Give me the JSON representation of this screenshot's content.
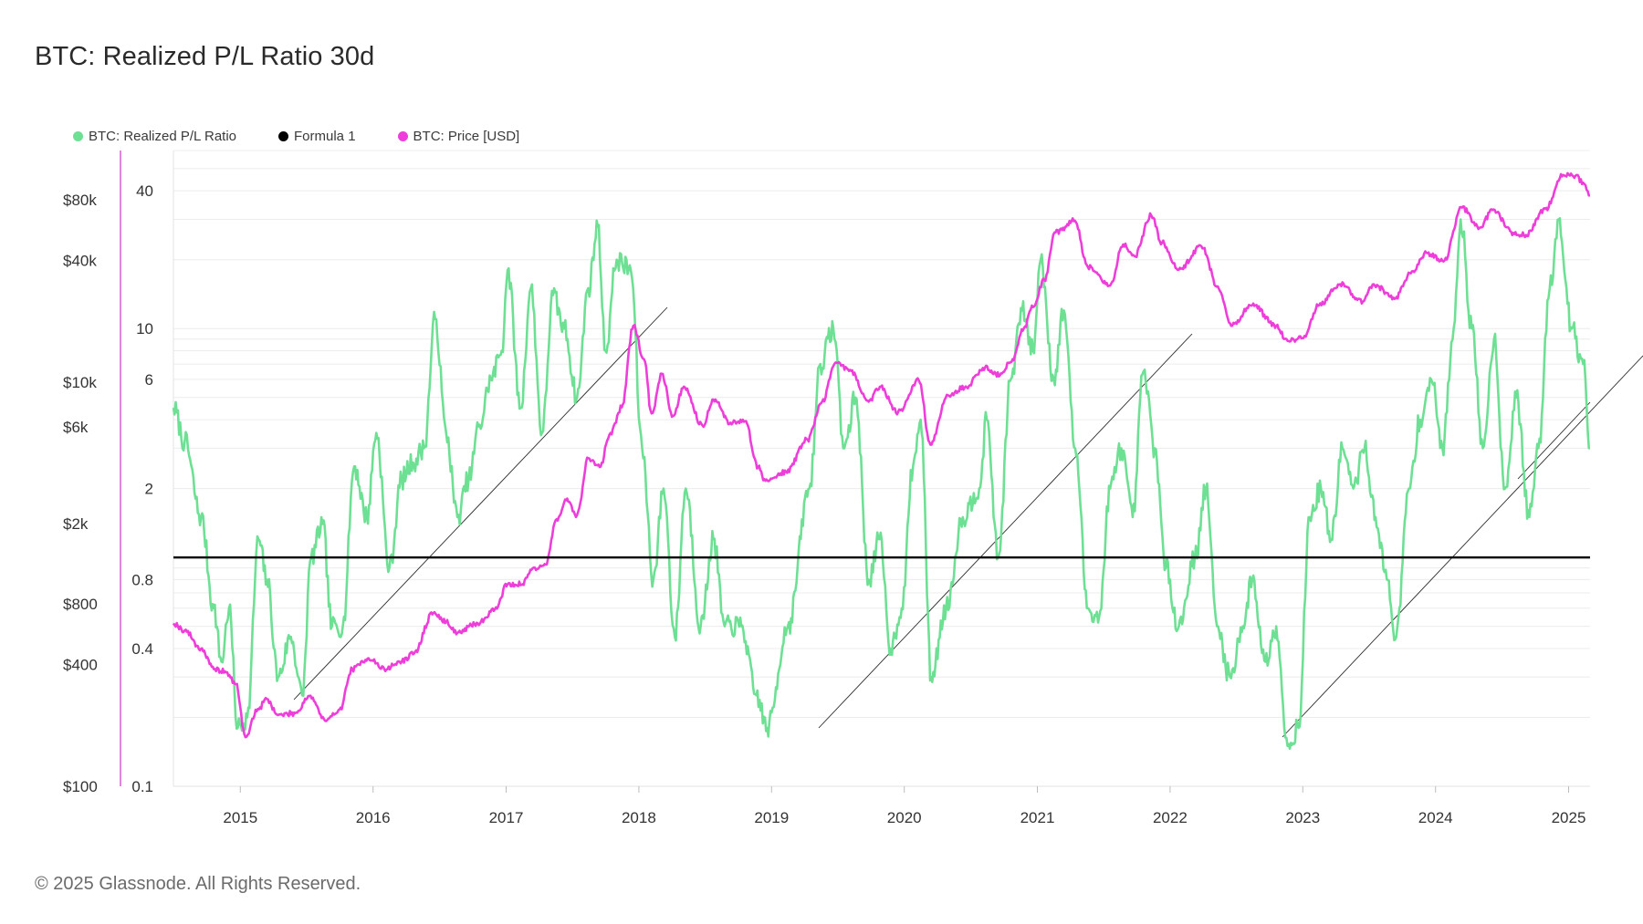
{
  "header": {
    "title": "BTC: Realized P/L Ratio 30d"
  },
  "footer": {
    "copyright": "© 2025 Glassnode. All Rights Reserved."
  },
  "colors": {
    "ratio": "#6ee094",
    "price": "#ee3ed9",
    "formula": "#111111",
    "grid": "#ececec",
    "left_axis": "#d95fd0"
  },
  "chart_data": {
    "type": "line",
    "title": "BTC: Realized P/L Ratio 30d",
    "legend_position": "top-left",
    "grid": true,
    "x_range": [
      "2014-07-01",
      "2025-03-01"
    ],
    "x_ticks": [
      "2015",
      "2016",
      "2017",
      "2018",
      "2019",
      "2020",
      "2021",
      "2022",
      "2023",
      "2024",
      "2025"
    ],
    "y_left": {
      "scale": "log",
      "range": [
        100,
        140000
      ],
      "ticks": [
        "$100",
        "$400",
        "$800",
        "$2k",
        "$6k",
        "$10k",
        "$40k",
        "$80k"
      ],
      "tick_values": [
        100,
        400,
        800,
        2000,
        6000,
        10000,
        40000,
        80000
      ]
    },
    "y_right": {
      "scale": "log",
      "range": [
        0.1,
        60
      ],
      "ticks": [
        "0.1",
        "0.4",
        "0.8",
        "2",
        "6",
        "10",
        "40"
      ],
      "tick_values": [
        0.1,
        0.4,
        0.8,
        2,
        6,
        10,
        40
      ]
    },
    "series": [
      {
        "name": "BTC: Realized P/L Ratio",
        "axis": "right",
        "points": [
          [
            "2014-07-01",
            4.5
          ],
          [
            "2014-08-01",
            3.2
          ],
          [
            "2014-09-15",
            1.5
          ],
          [
            "2014-10-20",
            0.6
          ],
          [
            "2014-11-10",
            0.35
          ],
          [
            "2014-12-01",
            0.6
          ],
          [
            "2014-12-25",
            0.18
          ],
          [
            "2015-01-20",
            0.2
          ],
          [
            "2015-02-20",
            1.2
          ],
          [
            "2015-03-15",
            0.8
          ],
          [
            "2015-04-15",
            0.3
          ],
          [
            "2015-05-20",
            0.45
          ],
          [
            "2015-06-20",
            0.25
          ],
          [
            "2015-07-15",
            1.0
          ],
          [
            "2015-08-15",
            1.4
          ],
          [
            "2015-09-10",
            0.5
          ],
          [
            "2015-10-10",
            0.5
          ],
          [
            "2015-11-10",
            2.5
          ],
          [
            "2015-12-15",
            1.5
          ],
          [
            "2016-01-10",
            3.5
          ],
          [
            "2016-02-15",
            0.9
          ],
          [
            "2016-03-20",
            2.2
          ],
          [
            "2016-04-20",
            2.6
          ],
          [
            "2016-05-20",
            3.0
          ],
          [
            "2016-06-20",
            11.0
          ],
          [
            "2016-07-20",
            3.5
          ],
          [
            "2016-08-20",
            1.5
          ],
          [
            "2016-09-20",
            2.2
          ],
          [
            "2016-10-20",
            3.8
          ],
          [
            "2016-11-20",
            6.0
          ],
          [
            "2016-12-20",
            8.0
          ],
          [
            "2017-01-05",
            18.0
          ],
          [
            "2017-02-10",
            4.5
          ],
          [
            "2017-03-10",
            15.0
          ],
          [
            "2017-04-10",
            3.5
          ],
          [
            "2017-05-10",
            14.0
          ],
          [
            "2017-06-10",
            10.0
          ],
          [
            "2017-07-15",
            5.0
          ],
          [
            "2017-08-15",
            15.0
          ],
          [
            "2017-09-10",
            28.0
          ],
          [
            "2017-10-01",
            8.0
          ],
          [
            "2017-11-01",
            20.0
          ],
          [
            "2017-12-10",
            18.0
          ],
          [
            "2018-01-10",
            3.0
          ],
          [
            "2018-02-10",
            0.8
          ],
          [
            "2018-03-10",
            2.0
          ],
          [
            "2018-04-10",
            0.45
          ],
          [
            "2018-05-10",
            2.0
          ],
          [
            "2018-06-20",
            0.5
          ],
          [
            "2018-07-25",
            1.2
          ],
          [
            "2018-08-25",
            0.5
          ],
          [
            "2018-10-10",
            0.5
          ],
          [
            "2018-11-20",
            0.25
          ],
          [
            "2018-12-20",
            0.18
          ],
          [
            "2019-02-15",
            0.5
          ],
          [
            "2019-04-15",
            2.0
          ],
          [
            "2019-05-15",
            7.0
          ],
          [
            "2019-06-20",
            10.0
          ],
          [
            "2019-07-20",
            3.0
          ],
          [
            "2019-08-20",
            5.0
          ],
          [
            "2019-09-25",
            0.8
          ],
          [
            "2019-10-25",
            1.2
          ],
          [
            "2019-11-25",
            0.4
          ],
          [
            "2019-12-25",
            0.6
          ],
          [
            "2020-01-25",
            2.5
          ],
          [
            "2020-02-15",
            4.0
          ],
          [
            "2020-03-15",
            0.3
          ],
          [
            "2020-04-25",
            0.6
          ],
          [
            "2020-06-10",
            1.5
          ],
          [
            "2020-07-25",
            2.0
          ],
          [
            "2020-08-15",
            4.0
          ],
          [
            "2020-09-15",
            1.0
          ],
          [
            "2020-10-20",
            6.0
          ],
          [
            "2020-11-20",
            12.0
          ],
          [
            "2020-12-20",
            8.0
          ],
          [
            "2021-01-10",
            20.0
          ],
          [
            "2021-02-15",
            6.0
          ],
          [
            "2021-03-15",
            12.0
          ],
          [
            "2021-04-15",
            3.0
          ],
          [
            "2021-05-20",
            0.6
          ],
          [
            "2021-06-20",
            0.55
          ],
          [
            "2021-07-20",
            2.0
          ],
          [
            "2021-08-20",
            3.0
          ],
          [
            "2021-09-20",
            1.5
          ],
          [
            "2021-10-20",
            6.5
          ],
          [
            "2021-11-20",
            3.0
          ],
          [
            "2021-12-20",
            0.9
          ],
          [
            "2022-01-25",
            0.5
          ],
          [
            "2022-03-10",
            1.0
          ],
          [
            "2022-04-10",
            2.0
          ],
          [
            "2022-05-10",
            0.5
          ],
          [
            "2022-06-15",
            0.3
          ],
          [
            "2022-07-20",
            0.5
          ],
          [
            "2022-08-15",
            0.8
          ],
          [
            "2022-09-20",
            0.35
          ],
          [
            "2022-10-20",
            0.5
          ],
          [
            "2022-11-20",
            0.15
          ],
          [
            "2022-12-20",
            0.18
          ],
          [
            "2023-01-20",
            1.5
          ],
          [
            "2023-02-20",
            2.0
          ],
          [
            "2023-03-20",
            1.2
          ],
          [
            "2023-04-20",
            3.0
          ],
          [
            "2023-05-20",
            2.0
          ],
          [
            "2023-06-20",
            3.0
          ],
          [
            "2023-07-20",
            1.5
          ],
          [
            "2023-08-20",
            0.8
          ],
          [
            "2023-09-15",
            0.45
          ],
          [
            "2023-10-20",
            2.0
          ],
          [
            "2023-11-20",
            4.0
          ],
          [
            "2023-12-20",
            6.0
          ],
          [
            "2024-01-20",
            3.0
          ],
          [
            "2024-02-20",
            10.0
          ],
          [
            "2024-03-10",
            30.0
          ],
          [
            "2024-04-10",
            10.0
          ],
          [
            "2024-05-10",
            3.0
          ],
          [
            "2024-06-10",
            9.0
          ],
          [
            "2024-07-10",
            2.0
          ],
          [
            "2024-08-10",
            5.0
          ],
          [
            "2024-09-15",
            1.5
          ],
          [
            "2024-10-10",
            3.0
          ],
          [
            "2024-11-10",
            15.0
          ],
          [
            "2024-12-05",
            30.0
          ],
          [
            "2025-01-10",
            10.0
          ],
          [
            "2025-02-10",
            7.0
          ],
          [
            "2025-03-01",
            3.0
          ]
        ]
      },
      {
        "name": "Formula 1",
        "axis": "right",
        "points": [
          [
            "2014-07-01",
            1.0
          ],
          [
            "2025-03-01",
            1.0
          ]
        ]
      },
      {
        "name": "BTC: Price [USD]",
        "axis": "left",
        "points": [
          [
            "2014-07-01",
            640
          ],
          [
            "2014-08-01",
            590
          ],
          [
            "2014-09-15",
            480
          ],
          [
            "2014-10-20",
            380
          ],
          [
            "2014-11-20",
            370
          ],
          [
            "2014-12-20",
            320
          ],
          [
            "2015-01-15",
            175
          ],
          [
            "2015-02-15",
            235
          ],
          [
            "2015-03-15",
            270
          ],
          [
            "2015-04-15",
            225
          ],
          [
            "2015-06-01",
            230
          ],
          [
            "2015-07-10",
            280
          ],
          [
            "2015-08-25",
            210
          ],
          [
            "2015-10-01",
            240
          ],
          [
            "2015-11-05",
            380
          ],
          [
            "2015-12-20",
            430
          ],
          [
            "2016-02-01",
            380
          ],
          [
            "2016-03-20",
            415
          ],
          [
            "2016-04-20",
            450
          ],
          [
            "2016-06-15",
            720
          ],
          [
            "2016-07-20",
            650
          ],
          [
            "2016-08-20",
            575
          ],
          [
            "2016-10-15",
            640
          ],
          [
            "2016-12-01",
            750
          ],
          [
            "2017-01-05",
            1000
          ],
          [
            "2017-02-15",
            1000
          ],
          [
            "2017-03-15",
            1200
          ],
          [
            "2017-04-20",
            1250
          ],
          [
            "2017-05-20",
            2100
          ],
          [
            "2017-06-15",
            2600
          ],
          [
            "2017-07-15",
            2200
          ],
          [
            "2017-08-15",
            4200
          ],
          [
            "2017-09-15",
            3800
          ],
          [
            "2017-10-15",
            5600
          ],
          [
            "2017-11-15",
            7500
          ],
          [
            "2017-12-17",
            19000
          ],
          [
            "2018-01-15",
            13000
          ],
          [
            "2018-02-05",
            7000
          ],
          [
            "2018-03-05",
            11000
          ],
          [
            "2018-04-05",
            6800
          ],
          [
            "2018-05-05",
            9500
          ],
          [
            "2018-06-25",
            6100
          ],
          [
            "2018-07-25",
            8200
          ],
          [
            "2018-09-10",
            6300
          ],
          [
            "2018-10-20",
            6400
          ],
          [
            "2018-11-25",
            3800
          ],
          [
            "2018-12-15",
            3250
          ],
          [
            "2019-02-10",
            3600
          ],
          [
            "2019-04-10",
            5200
          ],
          [
            "2019-05-20",
            8000
          ],
          [
            "2019-06-26",
            12500
          ],
          [
            "2019-08-05",
            11500
          ],
          [
            "2019-09-25",
            8000
          ],
          [
            "2019-10-26",
            9500
          ],
          [
            "2019-12-15",
            7100
          ],
          [
            "2020-02-10",
            10200
          ],
          [
            "2020-03-13",
            4900
          ],
          [
            "2020-04-30",
            8600
          ],
          [
            "2020-06-15",
            9400
          ],
          [
            "2020-08-10",
            11800
          ],
          [
            "2020-09-20",
            10800
          ],
          [
            "2020-10-25",
            13000
          ],
          [
            "2020-11-25",
            18500
          ],
          [
            "2020-12-20",
            23500
          ],
          [
            "2021-01-20",
            32000
          ],
          [
            "2021-02-20",
            55000
          ],
          [
            "2021-04-14",
            63000
          ],
          [
            "2021-05-20",
            37000
          ],
          [
            "2021-07-20",
            30000
          ],
          [
            "2021-08-25",
            48000
          ],
          [
            "2021-09-25",
            42000
          ],
          [
            "2021-11-10",
            67000
          ],
          [
            "2021-12-10",
            49000
          ],
          [
            "2022-01-25",
            36000
          ],
          [
            "2022-03-28",
            47000
          ],
          [
            "2022-05-15",
            29000
          ],
          [
            "2022-06-18",
            19000
          ],
          [
            "2022-08-15",
            24000
          ],
          [
            "2022-10-20",
            19000
          ],
          [
            "2022-11-20",
            16000
          ],
          [
            "2022-12-31",
            16500
          ],
          [
            "2023-02-15",
            24000
          ],
          [
            "2023-04-14",
            30500
          ],
          [
            "2023-06-15",
            25000
          ],
          [
            "2023-07-15",
            30500
          ],
          [
            "2023-09-10",
            25800
          ],
          [
            "2023-10-25",
            34500
          ],
          [
            "2023-12-10",
            43500
          ],
          [
            "2024-01-23",
            39500
          ],
          [
            "2024-03-14",
            73000
          ],
          [
            "2024-05-01",
            58000
          ],
          [
            "2024-06-06",
            71000
          ],
          [
            "2024-08-05",
            54000
          ],
          [
            "2024-09-06",
            53500
          ],
          [
            "2024-10-29",
            72000
          ],
          [
            "2024-12-17",
            106000
          ],
          [
            "2025-01-20",
            105000
          ],
          [
            "2025-02-10",
            97000
          ],
          [
            "2025-03-01",
            84000
          ]
        ]
      }
    ]
  },
  "legend": [
    {
      "label": "BTC: Realized P/L Ratio",
      "color": "#6ee094"
    },
    {
      "label": "Formula 1",
      "color": "#000000"
    },
    {
      "label": "BTC: Price [USD]",
      "color": "#ee3ed9"
    }
  ]
}
